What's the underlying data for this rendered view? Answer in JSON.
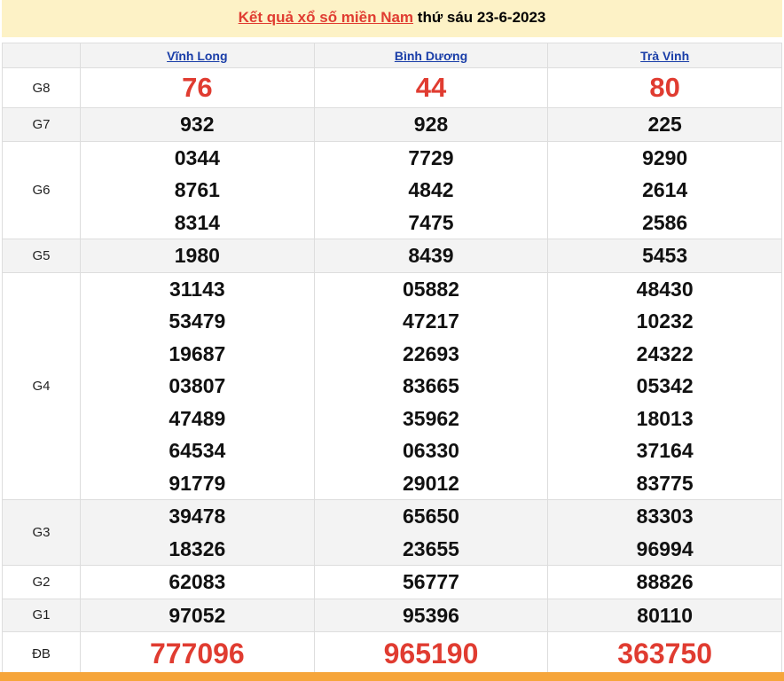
{
  "header": {
    "title_link": "Kết quả xổ số miền Nam",
    "title_rest": "thứ sáu 23-6-2023"
  },
  "table": {
    "columns": [
      "Vĩnh Long",
      "Bình Dương",
      "Trà Vinh"
    ],
    "rows": [
      {
        "label": "G8",
        "cells": [
          [
            "76"
          ],
          [
            "44"
          ],
          [
            "80"
          ]
        ]
      },
      {
        "label": "G7",
        "cells": [
          [
            "932"
          ],
          [
            "928"
          ],
          [
            "225"
          ]
        ]
      },
      {
        "label": "G6",
        "cells": [
          [
            "0344",
            "8761",
            "8314"
          ],
          [
            "7729",
            "4842",
            "7475"
          ],
          [
            "9290",
            "2614",
            "2586"
          ]
        ]
      },
      {
        "label": "G5",
        "cells": [
          [
            "1980"
          ],
          [
            "8439"
          ],
          [
            "5453"
          ]
        ]
      },
      {
        "label": "G4",
        "cells": [
          [
            "31143",
            "53479",
            "19687",
            "03807",
            "47489",
            "64534",
            "91779"
          ],
          [
            "05882",
            "47217",
            "22693",
            "83665",
            "35962",
            "06330",
            "29012"
          ],
          [
            "48430",
            "10232",
            "24322",
            "05342",
            "18013",
            "37164",
            "83775"
          ]
        ]
      },
      {
        "label": "G3",
        "cells": [
          [
            "39478",
            "18326"
          ],
          [
            "65650",
            "23655"
          ],
          [
            "83303",
            "96994"
          ]
        ]
      },
      {
        "label": "G2",
        "cells": [
          [
            "62083"
          ],
          [
            "56777"
          ],
          [
            "88826"
          ]
        ]
      },
      {
        "label": "G1",
        "cells": [
          [
            "97052"
          ],
          [
            "95396"
          ],
          [
            "80110"
          ]
        ]
      },
      {
        "label": "ĐB",
        "cells": [
          [
            "777096"
          ],
          [
            "965190"
          ],
          [
            "363750"
          ]
        ]
      }
    ]
  }
}
